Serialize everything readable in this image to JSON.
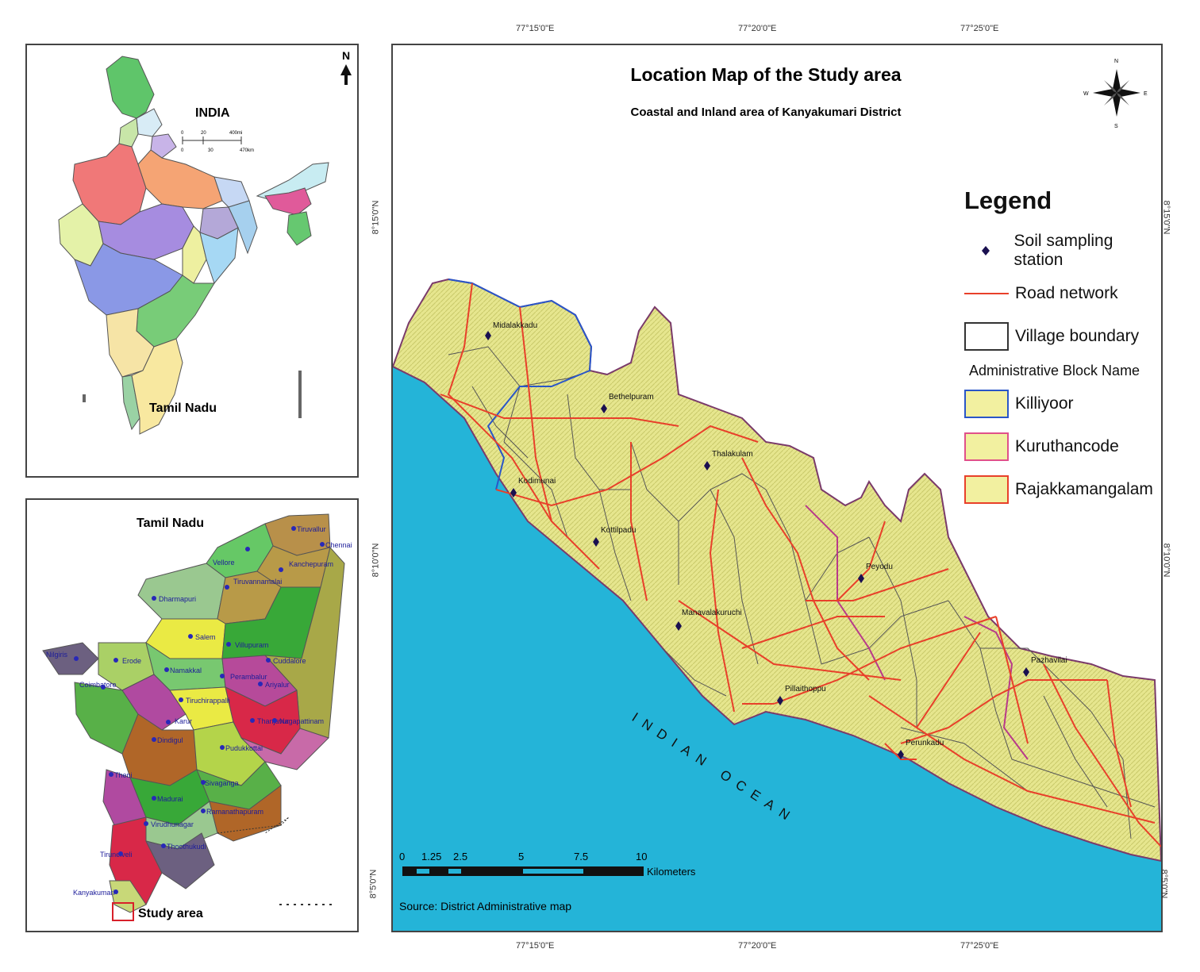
{
  "india_panel": {
    "country_label": "INDIA",
    "state_label": "Tamil Nadu",
    "north_label": "N",
    "scale_top": [
      "0",
      "20",
      "400mi"
    ],
    "scale_bottom": [
      "0",
      "30",
      "470km"
    ]
  },
  "tn_panel": {
    "title": "Tamil Nadu",
    "study_area_label": "Study area",
    "districts": [
      "Tiruvallur",
      "Chennai",
      "Vellore",
      "Kanchepuram",
      "Tiruvannamalai",
      "Dharmapuri",
      "Salem",
      "Villupuram",
      "Cuddalore",
      "Erode",
      "Namakkal",
      "Perambalur",
      "Nilgiris",
      "Coimbatore",
      "Tiruchirappalli",
      "Karur",
      "Ariyalur",
      "Thanjavur",
      "Nagapattinam",
      "Dindigul",
      "Pudukkottai",
      "Theni",
      "Madurai",
      "Sivaganga",
      "Virudhunagar",
      "Ramanathapuram",
      "Tirunelveli",
      "Thoothukudi",
      "Kanyakumari"
    ]
  },
  "main_map": {
    "title": "Location Map of the Study area",
    "subtitle": "Coastal and Inland area of Kanyakumari District",
    "top_coords": [
      "77°15'0\"E",
      "77°20'0\"E",
      "77°25'0\"E"
    ],
    "bottom_coords": [
      "77°15'0\"E",
      "77°20'0\"E",
      "77°25'0\"E"
    ],
    "left_coords": [
      "8°15'0\"N",
      "8°10'0\"N",
      "8°5'0\"N"
    ],
    "right_coords": [
      "8°15'0\"N",
      "8°10'0\"N",
      "8°5'0\"N"
    ],
    "ocean_label": "INDIAN OCEAN",
    "stations": [
      "Midalakkadu",
      "Bethelpuram",
      "Thalakulam",
      "Kodimunai",
      "Kottilpadu",
      "Peyodu",
      "Manavalakuruchi",
      "Pazhavilai",
      "Pillaithoppu",
      "Perunkadu"
    ],
    "compass_letters": [
      "N",
      "E",
      "S",
      "W"
    ],
    "scale_ticks": [
      "0",
      "1.25",
      "2.5",
      "5",
      "7.5",
      "10"
    ],
    "scale_unit": "Kilometers",
    "source": "Source: District Administrative map"
  },
  "legend": {
    "title": "Legend",
    "items": [
      {
        "label": "Soil sampling station",
        "symbol": "diamond",
        "color": "#1a1050"
      },
      {
        "label": "Road network",
        "symbol": "line",
        "color": "#e8402a"
      },
      {
        "label": "Village boundary",
        "symbol": "box",
        "color": "#333333"
      }
    ],
    "block_heading": "Administrative Block Name",
    "blocks": [
      {
        "label": "Killiyoor",
        "border": "#2a56c8",
        "fill": "#f2f0a0"
      },
      {
        "label": "Kuruthancode",
        "border": "#e0508a",
        "fill": "#f2f0a0"
      },
      {
        "label": "Rajakkamangalam",
        "border": "#e8402a",
        "fill": "#f2f0a0"
      }
    ]
  },
  "colors": {
    "ocean": "#24b4d8",
    "land": "#e8e894",
    "road": "#e8402a",
    "boundary": "#555555"
  }
}
